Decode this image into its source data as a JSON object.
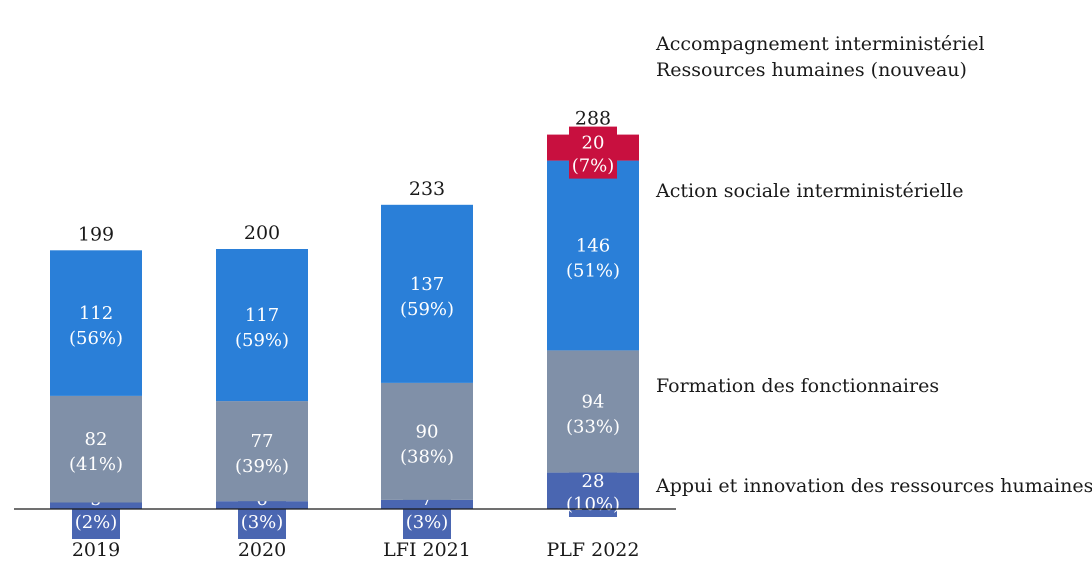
{
  "chart_data": {
    "type": "bar",
    "stacked": true,
    "categories": [
      "2019",
      "2020",
      "LFI 2021",
      "PLF 2022"
    ],
    "series": [
      {
        "name": "Appui et innovation des ressources humaines",
        "values": [
          5,
          6,
          7,
          28
        ],
        "percent_labels": [
          "(2%)",
          "(3%)",
          "(3%)",
          "(10%)"
        ],
        "color": "#4a66b1"
      },
      {
        "name": "Formation des fonctionnaires",
        "values": [
          82,
          77,
          90,
          94
        ],
        "percent_labels": [
          "(41%)",
          "(39%)",
          "(38%)",
          "(33%)"
        ],
        "color": "#8090a8"
      },
      {
        "name": "Action sociale interministérielle",
        "values": [
          112,
          117,
          137,
          146
        ],
        "percent_labels": [
          "(56%)",
          "(59%)",
          "(59%)",
          "(51%)"
        ],
        "color": "#2a7fd8"
      },
      {
        "name": "Accompagnement interministériel Ressources humaines (nouveau)",
        "name_lines": [
          "Accompagnement interministériel",
          "Ressources humaines (nouveau)"
        ],
        "values": [
          0,
          0,
          0,
          20
        ],
        "percent_labels": [
          "",
          "",
          "",
          "(7%)"
        ],
        "color": "#c8103f"
      }
    ],
    "totals": [
      199,
      200,
      233,
      288
    ],
    "ylim": [
      0,
      300
    ],
    "grid": false,
    "legend": "right"
  }
}
